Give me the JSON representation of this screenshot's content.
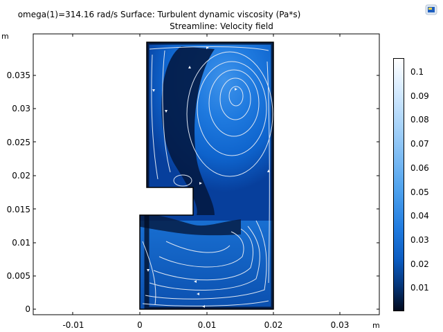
{
  "header": {
    "title_line1": "omega(1)=314.16 rad/s   Surface: Turbulent dynamic viscosity (Pa*s)",
    "title_line2": "Streamline: Velocity field"
  },
  "axes": {
    "x_unit": "m",
    "y_unit": "m",
    "x_ticks": [
      "-0.01",
      "0",
      "0.01",
      "0.02",
      "0.03"
    ],
    "y_ticks": [
      "0.035",
      "0.03",
      "0.025",
      "0.02",
      "0.015",
      "0.01",
      "0.005",
      "0"
    ]
  },
  "colorbar": {
    "ticks": [
      "0.1",
      "0.09",
      "0.08",
      "0.07",
      "0.06",
      "0.05",
      "0.04",
      "0.03",
      "0.02",
      "0.01"
    ],
    "colors": [
      "#ffffff",
      "#9ccdf8",
      "#1f7adf",
      "#05367a",
      "#010a1e"
    ]
  },
  "icons": {
    "toolbar": "image-export-icon"
  },
  "chart_data": {
    "type": "heatmap",
    "title": "omega(1)=314.16 rad/s   Surface: Turbulent dynamic viscosity (Pa*s)",
    "subtitle": "Streamline: Velocity field",
    "xlabel": "m",
    "ylabel": "m",
    "xlim": [
      -0.0155,
      0.0335
    ],
    "ylim": [
      -0.001,
      0.0405
    ],
    "colorbar_range": [
      0,
      0.105
    ],
    "geometry_outline": [
      [
        0.001,
        0.017
      ],
      [
        0.001,
        0.04
      ],
      [
        0.02,
        0.04
      ],
      [
        0.02,
        0.0
      ],
      [
        0.0,
        0.0
      ],
      [
        0.0,
        0.014
      ],
      [
        0.008,
        0.014
      ],
      [
        0.008,
        0.017
      ],
      [
        0.001,
        0.017
      ]
    ],
    "upper_vortex_center": [
      0.0145,
      0.0325
    ],
    "grid": false
  }
}
